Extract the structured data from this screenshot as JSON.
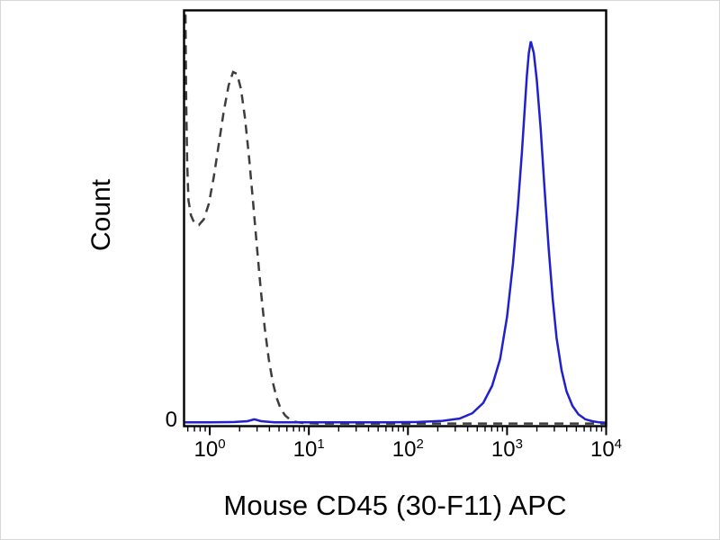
{
  "figure": {
    "ylabel": "Count",
    "y_zero_label": "0",
    "xlabel": "Mouse CD45 (30-F11) APC"
  },
  "chart_data": {
    "type": "line",
    "subtype": "flow-cytometry-histogram",
    "title": "",
    "xlabel": "Mouse CD45 (30-F11) APC",
    "ylabel": "Count",
    "x_scale": "log10",
    "x_range": [
      0.55,
      10000
    ],
    "x_ticks": [
      "0",
      "1",
      "2",
      "3",
      "4"
    ],
    "x_tick_base": "10",
    "y_axis": {
      "tick_labels": [
        "0"
      ],
      "values": "normalized 0-1"
    },
    "grid": false,
    "legend": "none",
    "frame_color": "#000000",
    "series": [
      {
        "name": "dashed-curve",
        "style": "dashed",
        "color": "#3d3d3d",
        "points": [
          [
            -0.247,
            1.15
          ],
          [
            -0.243,
            1.0
          ],
          [
            -0.238,
            0.84
          ],
          [
            -0.228,
            0.68
          ],
          [
            -0.215,
            0.585
          ],
          [
            -0.19,
            0.545
          ],
          [
            -0.155,
            0.525
          ],
          [
            -0.11,
            0.52
          ],
          [
            -0.06,
            0.535
          ],
          [
            -0.01,
            0.575
          ],
          [
            0.04,
            0.645
          ],
          [
            0.09,
            0.73
          ],
          [
            0.14,
            0.815
          ],
          [
            0.19,
            0.885
          ],
          [
            0.235,
            0.92
          ],
          [
            0.275,
            0.915
          ],
          [
            0.315,
            0.875
          ],
          [
            0.355,
            0.8
          ],
          [
            0.395,
            0.7
          ],
          [
            0.435,
            0.585
          ],
          [
            0.475,
            0.465
          ],
          [
            0.515,
            0.35
          ],
          [
            0.555,
            0.25
          ],
          [
            0.595,
            0.17
          ],
          [
            0.635,
            0.11
          ],
          [
            0.675,
            0.068
          ],
          [
            0.715,
            0.04
          ],
          [
            0.76,
            0.022
          ],
          [
            0.81,
            0.011
          ],
          [
            0.87,
            0.005
          ],
          [
            0.95,
            0.002
          ],
          [
            1.1,
            0.001
          ],
          [
            1.5,
            0.001
          ],
          [
            2.0,
            0.001
          ],
          [
            2.5,
            0.001
          ],
          [
            3.0,
            0.001
          ],
          [
            3.5,
            0.001
          ],
          [
            4.0,
            0.001
          ]
        ]
      },
      {
        "name": "solid-curve",
        "style": "solid",
        "color": "#2121cc",
        "points": [
          [
            -0.25,
            0.004
          ],
          [
            0.0,
            0.004
          ],
          [
            0.25,
            0.005
          ],
          [
            0.38,
            0.007
          ],
          [
            0.45,
            0.012
          ],
          [
            0.52,
            0.007
          ],
          [
            0.65,
            0.004
          ],
          [
            0.9,
            0.004
          ],
          [
            1.2,
            0.004
          ],
          [
            1.5,
            0.004
          ],
          [
            1.8,
            0.004
          ],
          [
            2.1,
            0.005
          ],
          [
            2.35,
            0.008
          ],
          [
            2.52,
            0.014
          ],
          [
            2.65,
            0.028
          ],
          [
            2.76,
            0.055
          ],
          [
            2.85,
            0.1
          ],
          [
            2.93,
            0.17
          ],
          [
            3.0,
            0.28
          ],
          [
            3.06,
            0.42
          ],
          [
            3.11,
            0.57
          ],
          [
            3.15,
            0.71
          ],
          [
            3.18,
            0.83
          ],
          [
            3.2,
            0.91
          ],
          [
            3.22,
            0.97
          ],
          [
            3.24,
            1.0
          ],
          [
            3.27,
            0.97
          ],
          [
            3.3,
            0.9
          ],
          [
            3.34,
            0.77
          ],
          [
            3.38,
            0.61
          ],
          [
            3.42,
            0.46
          ],
          [
            3.46,
            0.33
          ],
          [
            3.5,
            0.225
          ],
          [
            3.55,
            0.14
          ],
          [
            3.6,
            0.085
          ],
          [
            3.66,
            0.047
          ],
          [
            3.72,
            0.025
          ],
          [
            3.79,
            0.012
          ],
          [
            3.86,
            0.007
          ],
          [
            3.93,
            0.004
          ],
          [
            4.0,
            0.003
          ]
        ]
      }
    ]
  }
}
